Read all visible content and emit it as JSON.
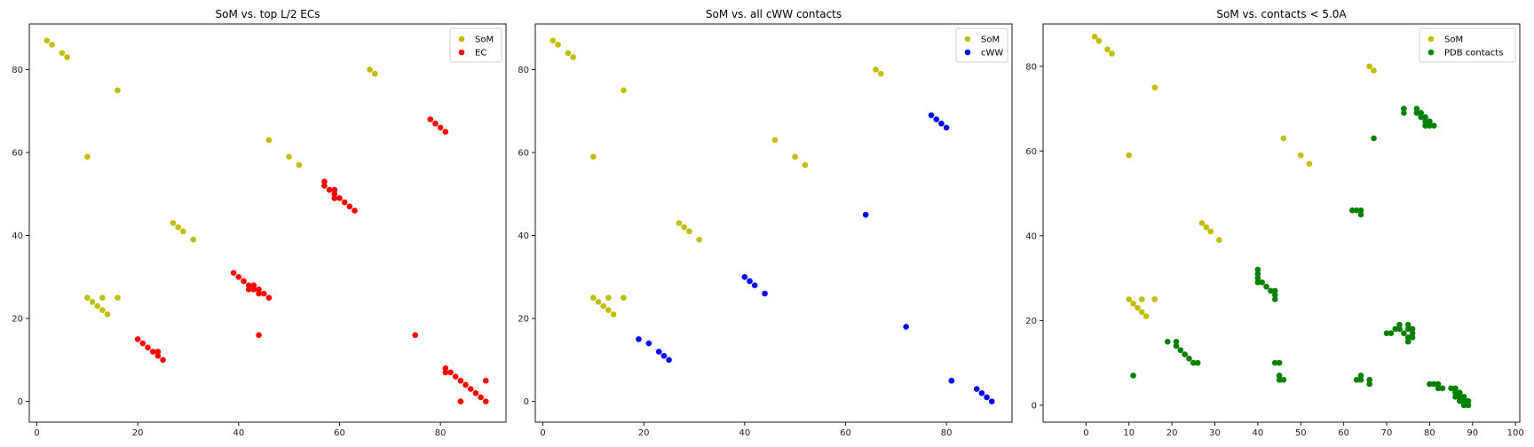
{
  "chart_data": [
    {
      "type": "scatter",
      "title": "SoM vs. top L/2 ECs",
      "xlabel": "",
      "ylabel": "",
      "xlim": [
        -1.5,
        93
      ],
      "ylim": [
        -5,
        91
      ],
      "xticks": [
        0,
        20,
        40,
        60,
        80
      ],
      "yticks": [
        0,
        20,
        40,
        60,
        80
      ],
      "grid": false,
      "legend": "top-right",
      "series": [
        {
          "name": "SoM",
          "color": "#bfbf00",
          "points": [
            [
              2,
              87
            ],
            [
              3,
              86
            ],
            [
              5,
              84
            ],
            [
              6,
              83
            ],
            [
              16,
              75
            ],
            [
              10,
              59
            ],
            [
              46,
              63
            ],
            [
              50,
              59
            ],
            [
              52,
              57
            ],
            [
              66,
              80
            ],
            [
              67,
              79
            ],
            [
              27,
              43
            ],
            [
              28,
              42
            ],
            [
              29,
              41
            ],
            [
              31,
              39
            ],
            [
              10,
              25
            ],
            [
              11,
              24
            ],
            [
              12,
              23
            ],
            [
              13,
              22
            ],
            [
              14,
              21
            ],
            [
              13,
              25
            ],
            [
              16,
              25
            ]
          ]
        },
        {
          "name": "EC",
          "color": "#ff0000",
          "points": [
            [
              20,
              15
            ],
            [
              21,
              14
            ],
            [
              22,
              13
            ],
            [
              23,
              12
            ],
            [
              24,
              11
            ],
            [
              24,
              12
            ],
            [
              25,
              10
            ],
            [
              39,
              31
            ],
            [
              40,
              30
            ],
            [
              41,
              29
            ],
            [
              42,
              28
            ],
            [
              42,
              27
            ],
            [
              43,
              28
            ],
            [
              43,
              27
            ],
            [
              44,
              27
            ],
            [
              44,
              26
            ],
            [
              45,
              26
            ],
            [
              46,
              25
            ],
            [
              44,
              16
            ],
            [
              57,
              53
            ],
            [
              57,
              52
            ],
            [
              58,
              51
            ],
            [
              59,
              51
            ],
            [
              59,
              50
            ],
            [
              59,
              49
            ],
            [
              60,
              49
            ],
            [
              61,
              48
            ],
            [
              62,
              47
            ],
            [
              63,
              46
            ],
            [
              78,
              68
            ],
            [
              79,
              67
            ],
            [
              80,
              66
            ],
            [
              81,
              65
            ],
            [
              75,
              16
            ],
            [
              81,
              8
            ],
            [
              81,
              7
            ],
            [
              82,
              7
            ],
            [
              83,
              6
            ],
            [
              84,
              5
            ],
            [
              85,
              4
            ],
            [
              86,
              3
            ],
            [
              87,
              2
            ],
            [
              88,
              1
            ],
            [
              89,
              0
            ],
            [
              89,
              5
            ],
            [
              84,
              0
            ]
          ]
        }
      ]
    },
    {
      "type": "scatter",
      "title": "SoM vs. all cWW contacts",
      "xlabel": "",
      "ylabel": "",
      "xlim": [
        -1.5,
        93
      ],
      "ylim": [
        -5,
        91
      ],
      "xticks": [
        0,
        20,
        40,
        60,
        80
      ],
      "yticks": [
        0,
        20,
        40,
        60,
        80
      ],
      "grid": false,
      "legend": "top-right",
      "series": [
        {
          "name": "SoM",
          "color": "#bfbf00",
          "points": [
            [
              2,
              87
            ],
            [
              3,
              86
            ],
            [
              5,
              84
            ],
            [
              6,
              83
            ],
            [
              16,
              75
            ],
            [
              10,
              59
            ],
            [
              46,
              63
            ],
            [
              50,
              59
            ],
            [
              52,
              57
            ],
            [
              66,
              80
            ],
            [
              67,
              79
            ],
            [
              27,
              43
            ],
            [
              28,
              42
            ],
            [
              29,
              41
            ],
            [
              31,
              39
            ],
            [
              10,
              25
            ],
            [
              11,
              24
            ],
            [
              12,
              23
            ],
            [
              13,
              22
            ],
            [
              14,
              21
            ],
            [
              13,
              25
            ],
            [
              16,
              25
            ]
          ]
        },
        {
          "name": "cWW",
          "color": "#0000ff",
          "points": [
            [
              19,
              15
            ],
            [
              21,
              14
            ],
            [
              23,
              12
            ],
            [
              24,
              11
            ],
            [
              25,
              10
            ],
            [
              40,
              30
            ],
            [
              41,
              29
            ],
            [
              42,
              28
            ],
            [
              44,
              26
            ],
            [
              64,
              45
            ],
            [
              72,
              18
            ],
            [
              77,
              69
            ],
            [
              78,
              68
            ],
            [
              79,
              67
            ],
            [
              80,
              66
            ],
            [
              81,
              5
            ],
            [
              86,
              3
            ],
            [
              87,
              2
            ],
            [
              88,
              1
            ],
            [
              89,
              0
            ]
          ]
        }
      ]
    },
    {
      "type": "scatter",
      "title": "SoM vs. contacts < 5.0A",
      "xlabel": "",
      "ylabel": "",
      "xlim": [
        -10,
        101
      ],
      "ylim": [
        -4,
        90
      ],
      "xticks": [
        0,
        10,
        20,
        30,
        40,
        50,
        60,
        70,
        80,
        90,
        100
      ],
      "yticks": [
        0,
        20,
        40,
        60,
        80
      ],
      "grid": false,
      "legend": "top-right",
      "series": [
        {
          "name": "SoM",
          "color": "#bfbf00",
          "points": [
            [
              2,
              87
            ],
            [
              3,
              86
            ],
            [
              5,
              84
            ],
            [
              6,
              83
            ],
            [
              16,
              75
            ],
            [
              10,
              59
            ],
            [
              46,
              63
            ],
            [
              50,
              59
            ],
            [
              52,
              57
            ],
            [
              66,
              80
            ],
            [
              67,
              79
            ],
            [
              27,
              43
            ],
            [
              28,
              42
            ],
            [
              29,
              41
            ],
            [
              31,
              39
            ],
            [
              10,
              25
            ],
            [
              11,
              24
            ],
            [
              12,
              23
            ],
            [
              13,
              22
            ],
            [
              14,
              21
            ],
            [
              13,
              25
            ],
            [
              16,
              25
            ]
          ]
        },
        {
          "name": "PDB contacts",
          "color": "#008000",
          "points": [
            [
              11,
              7
            ],
            [
              19,
              15
            ],
            [
              21,
              15
            ],
            [
              21,
              14
            ],
            [
              22,
              13
            ],
            [
              23,
              12
            ],
            [
              24,
              11
            ],
            [
              25,
              10
            ],
            [
              26,
              10
            ],
            [
              40,
              32
            ],
            [
              40,
              31
            ],
            [
              40,
              30
            ],
            [
              40,
              29
            ],
            [
              41,
              29
            ],
            [
              42,
              28
            ],
            [
              43,
              27
            ],
            [
              44,
              27
            ],
            [
              44,
              26
            ],
            [
              44,
              25
            ],
            [
              44,
              10
            ],
            [
              45,
              10
            ],
            [
              45,
              7
            ],
            [
              45,
              6
            ],
            [
              46,
              6
            ],
            [
              62,
              46
            ],
            [
              63,
              46
            ],
            [
              64,
              46
            ],
            [
              64,
              45
            ],
            [
              63,
              6
            ],
            [
              64,
              7
            ],
            [
              64,
              6
            ],
            [
              66,
              6
            ],
            [
              66,
              5
            ],
            [
              67,
              63
            ],
            [
              70,
              17
            ],
            [
              71,
              17
            ],
            [
              72,
              18
            ],
            [
              73,
              19
            ],
            [
              73,
              18
            ],
            [
              74,
              17
            ],
            [
              75,
              19
            ],
            [
              75,
              18
            ],
            [
              75,
              16
            ],
            [
              75,
              15
            ],
            [
              76,
              18
            ],
            [
              76,
              17
            ],
            [
              76,
              16
            ],
            [
              74,
              70
            ],
            [
              74,
              69
            ],
            [
              77,
              70
            ],
            [
              77,
              69
            ],
            [
              78,
              69
            ],
            [
              78,
              68
            ],
            [
              79,
              68
            ],
            [
              79,
              67
            ],
            [
              79,
              66
            ],
            [
              80,
              67
            ],
            [
              80,
              66
            ],
            [
              81,
              66
            ],
            [
              80,
              5
            ],
            [
              81,
              5
            ],
            [
              82,
              5
            ],
            [
              82,
              4
            ],
            [
              83,
              4
            ],
            [
              85,
              4
            ],
            [
              86,
              4
            ],
            [
              86,
              3
            ],
            [
              86,
              2
            ],
            [
              87,
              3
            ],
            [
              87,
              2
            ],
            [
              87,
              1
            ],
            [
              88,
              2
            ],
            [
              88,
              1
            ],
            [
              88,
              0
            ],
            [
              89,
              1
            ],
            [
              89,
              0
            ]
          ]
        }
      ]
    }
  ]
}
